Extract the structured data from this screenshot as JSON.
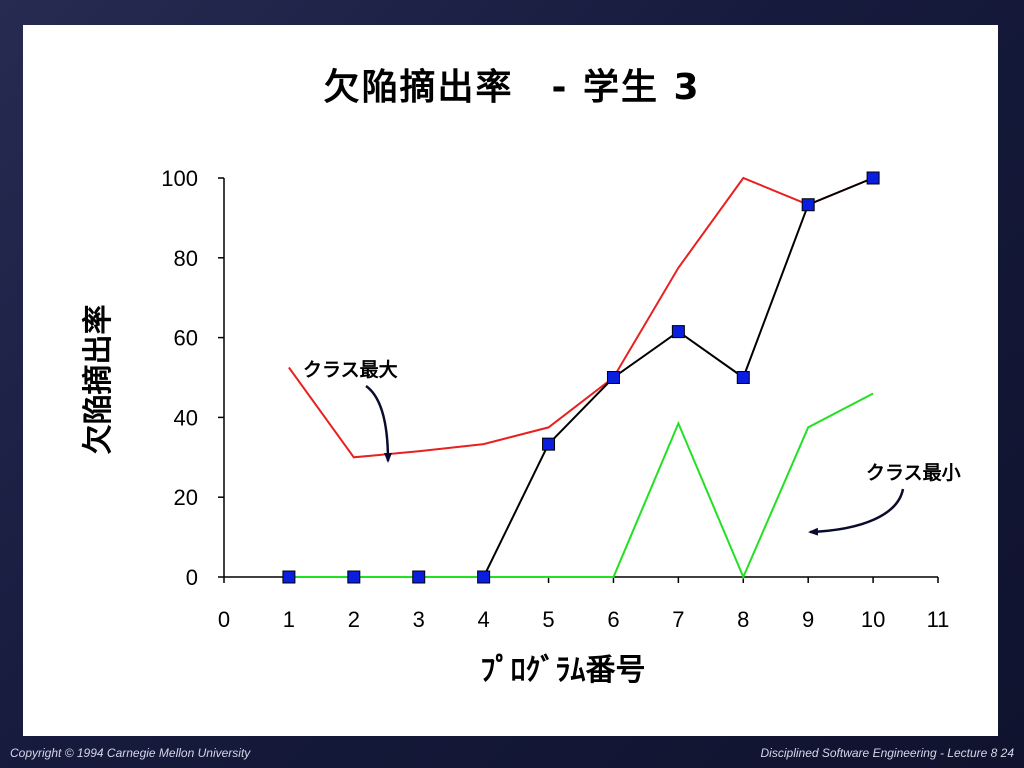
{
  "slide": {
    "title": "欠陥摘出率　- 学生 3"
  },
  "chart_data": {
    "type": "line",
    "ylabel": "欠陥摘出率",
    "xlabel": "ﾌﾟﾛｸﾞﾗﾑ番号",
    "xlim": [
      0,
      11
    ],
    "ylim": [
      0,
      100
    ],
    "xticks": [
      "0",
      "1",
      "2",
      "3",
      "4",
      "5",
      "6",
      "7",
      "8",
      "9",
      "10",
      "11"
    ],
    "yticks": [
      "0",
      "20",
      "40",
      "60",
      "80",
      "100"
    ],
    "grid": false,
    "series": [
      {
        "name": "クラス最大",
        "color": "#e82020",
        "markers": false,
        "x": [
          1,
          2,
          3,
          4,
          5,
          6,
          7,
          8,
          9,
          10
        ],
        "y": [
          52.5,
          30,
          31.5,
          33.3,
          37.5,
          50,
          77.5,
          100,
          93.3,
          100
        ]
      },
      {
        "color": "#000000",
        "markers": true,
        "marker_color": "#0a1ee0",
        "x": [
          1,
          2,
          3,
          4,
          5,
          6,
          7,
          8,
          9,
          10
        ],
        "y": [
          0,
          0,
          0,
          0,
          33.3,
          50,
          61.5,
          50,
          93.3,
          100
        ]
      },
      {
        "name": "クラス最小",
        "color": "#22e022",
        "markers": false,
        "x": [
          1,
          2,
          3,
          4,
          5,
          6,
          7,
          8,
          9,
          10
        ],
        "y": [
          0,
          0,
          0,
          0,
          0,
          0,
          38.5,
          0,
          37.5,
          46
        ]
      }
    ],
    "annotations": [
      {
        "text": "クラス最大"
      },
      {
        "text": "クラス最小"
      }
    ]
  },
  "footer": {
    "left": "Copyright  © 1994 Carnegie Mellon University",
    "right": "Disciplined Software Engineering - Lecture 8   24"
  }
}
